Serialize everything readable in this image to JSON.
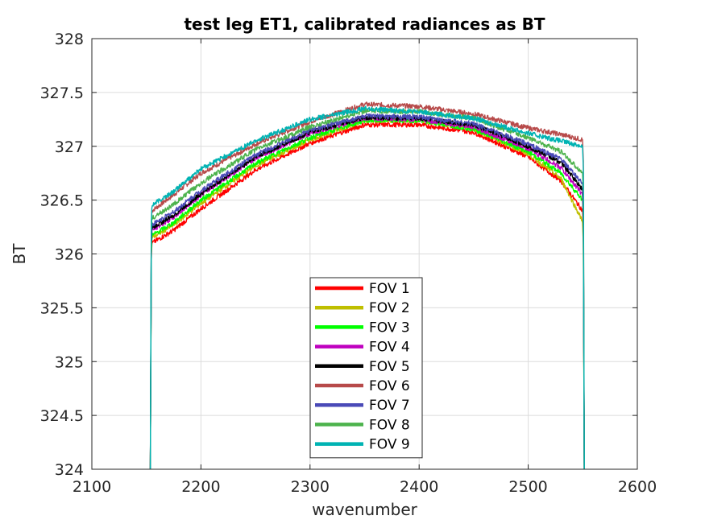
{
  "chart_data": {
    "type": "line",
    "title": "test leg ET1, calibrated radiances as BT",
    "xlabel": "wavenumber",
    "ylabel": "BT",
    "xlim": [
      2100,
      2600
    ],
    "ylim": [
      324,
      328
    ],
    "xticks": [
      2100,
      2200,
      2300,
      2400,
      2500,
      2600
    ],
    "yticks": [
      324,
      324.5,
      325,
      325.5,
      326,
      326.5,
      327,
      327.5,
      328
    ],
    "ytick_labels": [
      "324",
      "324.5",
      "325",
      "325.5",
      "326",
      "326.5",
      "327",
      "327.5",
      "328"
    ],
    "grid": true,
    "legend_position": "bottom-center",
    "band_edges": [
      2155,
      2550
    ],
    "x": [
      2155,
      2175,
      2200,
      2250,
      2300,
      2350,
      2400,
      2450,
      2500,
      2530,
      2550
    ],
    "series": [
      {
        "name": "FOV 1",
        "color": "#ff0000",
        "values": [
          326.1,
          326.22,
          326.42,
          326.78,
          327.03,
          327.2,
          327.2,
          327.13,
          326.9,
          326.68,
          326.4
        ]
      },
      {
        "name": "FOV 2",
        "color": "#bfbf00",
        "values": [
          326.15,
          326.27,
          326.47,
          326.82,
          327.06,
          327.24,
          327.24,
          327.16,
          326.93,
          326.7,
          326.3
        ]
      },
      {
        "name": "FOV 3",
        "color": "#00ff00",
        "values": [
          326.17,
          326.29,
          326.5,
          326.84,
          327.08,
          327.24,
          327.24,
          327.16,
          326.95,
          326.75,
          326.5
        ]
      },
      {
        "name": "FOV 4",
        "color": "#bf00bf",
        "values": [
          326.22,
          326.34,
          326.55,
          326.89,
          327.12,
          327.26,
          327.25,
          327.18,
          326.98,
          326.8,
          326.55
        ]
      },
      {
        "name": "FOV 5",
        "color": "#000000",
        "values": [
          326.24,
          326.36,
          326.56,
          326.9,
          327.13,
          327.27,
          327.26,
          327.2,
          327.0,
          326.85,
          326.6
        ]
      },
      {
        "name": "FOV 6",
        "color": "#b74a4a",
        "values": [
          326.4,
          326.55,
          326.75,
          327.02,
          327.23,
          327.39,
          327.37,
          327.3,
          327.17,
          327.11,
          327.06
        ]
      },
      {
        "name": "FOV 7",
        "color": "#4a4ab7",
        "values": [
          326.27,
          326.39,
          326.59,
          326.92,
          327.15,
          327.28,
          327.27,
          327.21,
          327.02,
          326.88,
          326.65
        ]
      },
      {
        "name": "FOV 8",
        "color": "#4db34d",
        "values": [
          326.33,
          326.46,
          326.66,
          326.97,
          327.18,
          327.33,
          327.32,
          327.26,
          327.08,
          326.95,
          326.75
        ]
      },
      {
        "name": "FOV 9",
        "color": "#00b3b3",
        "values": [
          326.45,
          326.58,
          326.79,
          327.05,
          327.25,
          327.35,
          327.32,
          327.26,
          327.12,
          327.05,
          327.0
        ]
      }
    ]
  }
}
